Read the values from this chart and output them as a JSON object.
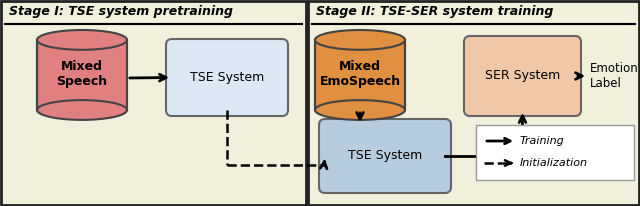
{
  "fig_width": 6.4,
  "fig_height": 2.06,
  "bg_color": "#f0f0dc",
  "border_color": "#222222",
  "stage1_title": "Stage I: TSE system pretraining",
  "stage2_title": "Stage II: TSE-SER system training",
  "cylinder1_color": "#e08080",
  "cylinder1_edge": "#444444",
  "cylinder1_label": "Mixed\nSpeech",
  "cylinder2_color": "#e09040",
  "cylinder2_edge": "#444444",
  "cylinder2_label": "Mixed\nEmoSpeech",
  "box_tse1_color": "#dce8f4",
  "box_tse1_edge": "#666666",
  "box_tse1_label": "TSE System",
  "box_tse2_color": "#b8ccdf",
  "box_tse2_edge": "#666666",
  "box_tse2_label": "TSE System",
  "box_ser_color": "#f0c8a8",
  "box_ser_edge": "#666666",
  "box_ser_label": "SER System",
  "emotion_label": "Emotion\nLabel",
  "legend_training": "Training",
  "legend_init": "Initialization"
}
